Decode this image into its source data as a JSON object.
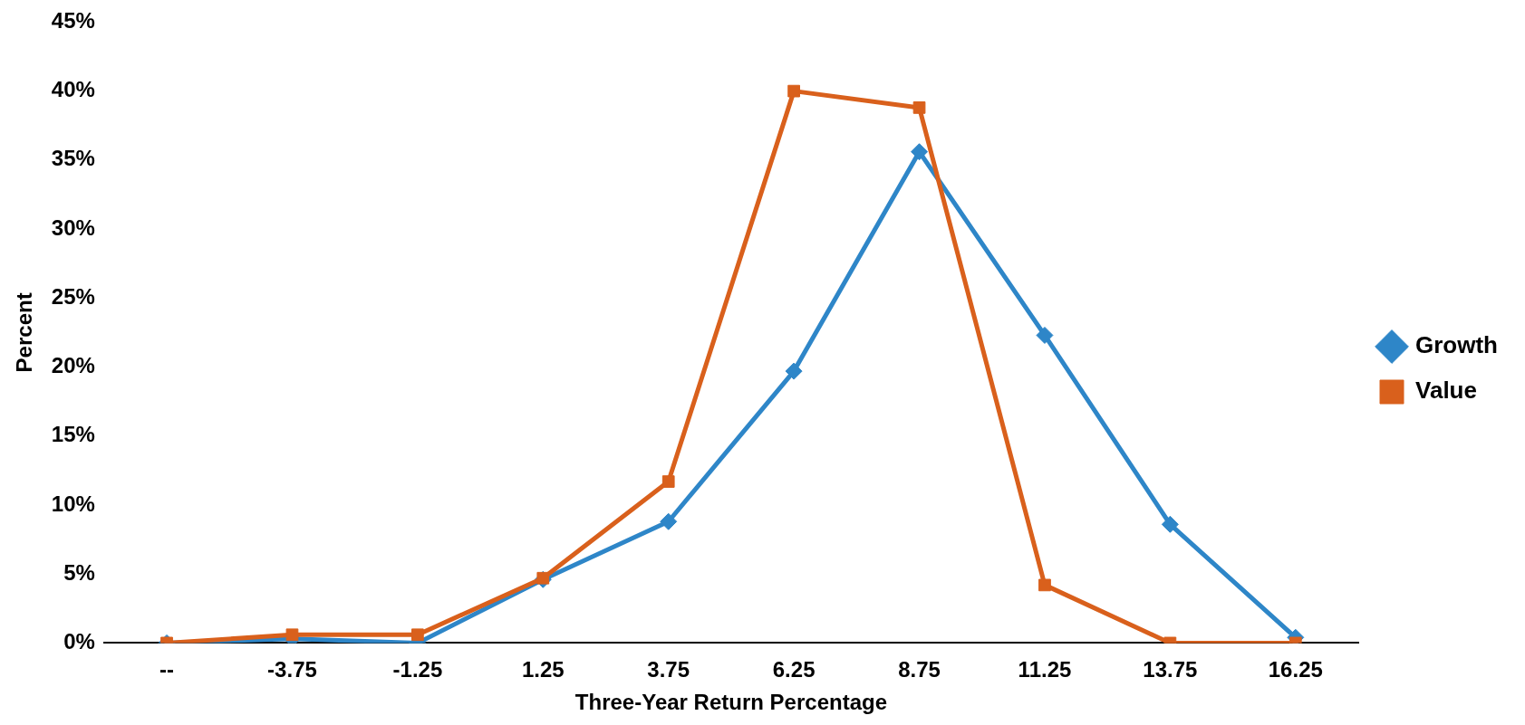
{
  "chart_data": {
    "type": "line",
    "xlabel": "Three-Year Return Percentage",
    "ylabel": "Percent",
    "categories": [
      "--",
      "-3.75",
      "-1.25",
      "1.25",
      "3.75",
      "6.25",
      "8.75",
      "11.25",
      "13.75",
      "16.25"
    ],
    "series": [
      {
        "name": "Growth",
        "color": "#2e86c8",
        "marker": "diamond",
        "values": [
          0,
          0.3,
          0,
          4.6,
          8.8,
          19.7,
          35.6,
          22.3,
          8.6,
          0.4
        ]
      },
      {
        "name": "Value",
        "color": "#d9601c",
        "marker": "square",
        "values": [
          0,
          0.6,
          0.6,
          4.7,
          11.7,
          40,
          38.8,
          4.2,
          0,
          0
        ]
      }
    ],
    "ylim": [
      0,
      45
    ],
    "yticks": [
      {
        "value": 0,
        "label": "0%"
      },
      {
        "value": 5,
        "label": "5%"
      },
      {
        "value": 10,
        "label": "10%"
      },
      {
        "value": 15,
        "label": "15%"
      },
      {
        "value": 20,
        "label": "20%"
      },
      {
        "value": 25,
        "label": "25%"
      },
      {
        "value": 30,
        "label": "30%"
      },
      {
        "value": 35,
        "label": "35%"
      },
      {
        "value": 40,
        "label": "40%"
      },
      {
        "value": 45,
        "label": "45%"
      }
    ],
    "grid": false,
    "legend": "right",
    "line_style": "solid"
  }
}
